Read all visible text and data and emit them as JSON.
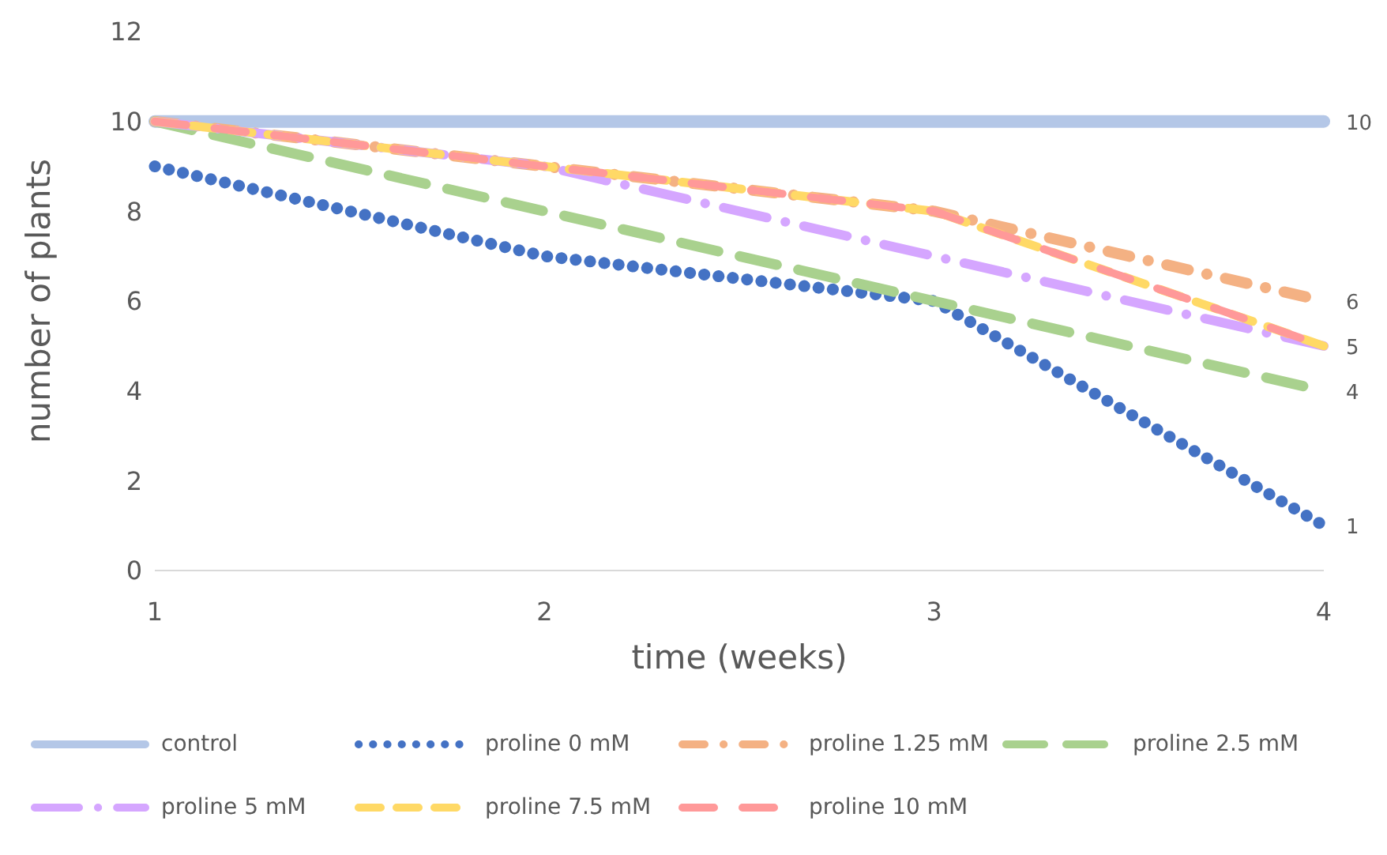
{
  "chart_data": {
    "type": "line",
    "xlabel": "time (weeks)",
    "ylabel": "number of plants",
    "categories": [
      "1",
      "2",
      "3",
      "4"
    ],
    "ylim": [
      0,
      12
    ],
    "yticks": [
      0,
      2,
      4,
      6,
      8,
      10,
      12
    ],
    "grid": false,
    "legend": "bottom",
    "marker": "none",
    "series": [
      {
        "name": "control",
        "color": "#b4c7e7",
        "values": [
          10,
          10,
          10,
          10
        ],
        "line_style": "solid",
        "value_labels": [
          null,
          null,
          null,
          "10"
        ]
      },
      {
        "name": "proline 0 mM",
        "color": "#4472c4",
        "values": [
          9,
          7,
          6,
          1
        ],
        "line_style": "dotted",
        "value_labels": [
          null,
          null,
          null,
          "1"
        ]
      },
      {
        "name": "proline 1.25 mM",
        "color": "#f4b183",
        "values": [
          10,
          9,
          8,
          6
        ],
        "line_style": "dashed",
        "value_labels": [
          null,
          null,
          null,
          "6"
        ]
      },
      {
        "name": "proline 2.5 mM",
        "color": "#a9d18e",
        "values": [
          10,
          8,
          6,
          4
        ],
        "line_style": "dashed",
        "value_labels": [
          null,
          null,
          null,
          "4"
        ]
      },
      {
        "name": "proline 5 mM",
        "color": "#d5a6ff",
        "values": [
          10,
          9,
          7,
          5
        ],
        "line_style": "dashed"
      },
      {
        "name": "proline 7.5 mM",
        "color": "#ffd966",
        "values": [
          10,
          9,
          8,
          5
        ],
        "line_style": "dashed",
        "value_labels": [
          null,
          null,
          null,
          "5"
        ]
      },
      {
        "name": "proline 10 mM",
        "color": "#ff9999",
        "values": [
          10,
          9,
          8,
          5
        ],
        "line_style": "dashed"
      }
    ]
  }
}
